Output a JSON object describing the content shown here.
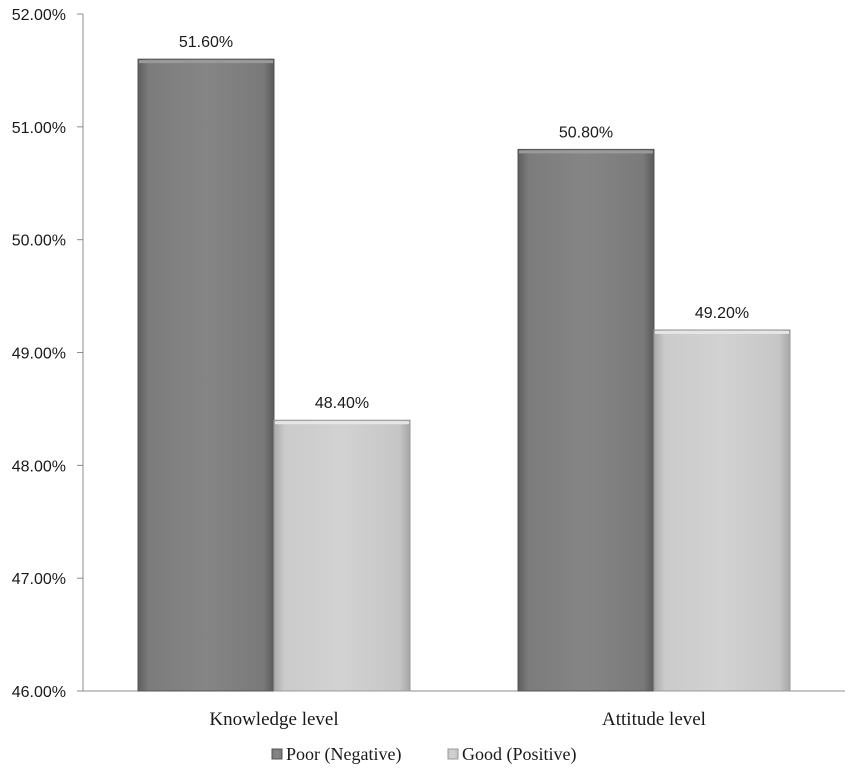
{
  "chart_data": {
    "type": "bar",
    "categories": [
      "Knowledge level",
      "Attitude level"
    ],
    "series": [
      {
        "name": "Poor (Negative)",
        "values": [
          51.6,
          50.8
        ],
        "labels": [
          "51.60%",
          "50.80%"
        ],
        "color": "#7a7a7a"
      },
      {
        "name": "Good (Positive)",
        "values": [
          48.4,
          49.2
        ],
        "labels": [
          "48.40%",
          "49.20%"
        ],
        "color": "#c8c8c8"
      }
    ],
    "ylim": [
      46,
      52
    ],
    "yticks": [
      52,
      51,
      50,
      49,
      48,
      47,
      46
    ],
    "ytick_labels": [
      "52.00%",
      "51.00%",
      "50.00%",
      "49.00%",
      "48.00%",
      "47.00%",
      "46.00%"
    ],
    "grid": false,
    "legend_position": "bottom",
    "title": "",
    "xlabel": "",
    "ylabel": ""
  }
}
